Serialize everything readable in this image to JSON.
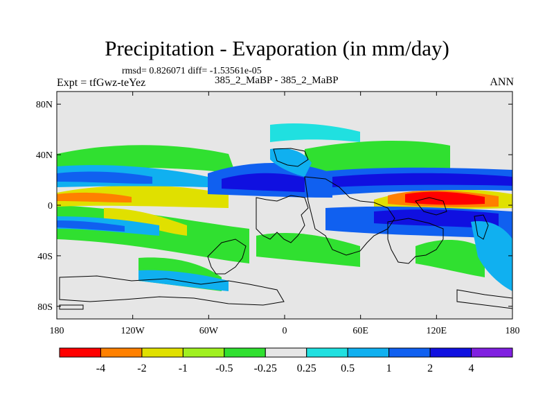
{
  "chart_data": {
    "type": "heatmap",
    "title": "Precipitation - Evaporation (in mm/day)",
    "stats_line": "rmsd= 0.826071  diff= -1.53561e-05",
    "left_label": "Expt = tfGwz-teYez",
    "center_label": "385_2_MaBP - 385_2_MaBP",
    "right_label": "ANN",
    "x_axis": {
      "range": [
        -180,
        180
      ],
      "ticks": [
        {
          "value": -180,
          "label": "180"
        },
        {
          "value": -120,
          "label": "120W"
        },
        {
          "value": -60,
          "label": "60W"
        },
        {
          "value": 0,
          "label": "0"
        },
        {
          "value": 60,
          "label": "60E"
        },
        {
          "value": 120,
          "label": "120E"
        },
        {
          "value": 180,
          "label": "180"
        }
      ]
    },
    "y_axis": {
      "range": [
        -90,
        90
      ],
      "ticks": [
        {
          "value": 80,
          "label": "80N"
        },
        {
          "value": 40,
          "label": "40N"
        },
        {
          "value": 0,
          "label": "0"
        },
        {
          "value": -40,
          "label": "40S"
        },
        {
          "value": -80,
          "label": "80S"
        }
      ]
    },
    "colorbar": {
      "colors": [
        "#ff0000",
        "#ff8000",
        "#e0e000",
        "#a0f020",
        "#30e030",
        "#e6e6e6",
        "#20e0e0",
        "#10b0f0",
        "#1060f0",
        "#1010e0",
        "#8020e0"
      ],
      "labels": [
        "-4",
        "-2",
        "-1",
        "-0.5",
        "-0.25",
        "0.25",
        "0.5",
        "1",
        "2",
        "4"
      ]
    },
    "field_regions": [
      {
        "level": "lt_-4",
        "lon": [
          95,
          140
        ],
        "lat": [
          5,
          13
        ]
      },
      {
        "level": "-4_-2",
        "lon": [
          75,
          160
        ],
        "lat": [
          2,
          18
        ]
      },
      {
        "level": "-2_-1",
        "lon": [
          -180,
          -100
        ],
        "lat": [
          3,
          20
        ]
      },
      {
        "level": "-1_-0.5",
        "lon": [
          -180,
          -50
        ],
        "lat": [
          -35,
          40
        ]
      },
      {
        "level": "-0.5_-0.25",
        "lon": [
          20,
          120
        ],
        "lat": [
          25,
          45
        ]
      },
      {
        "level": "0.5_1",
        "lon": [
          -20,
          50
        ],
        "lat": [
          45,
          65
        ]
      },
      {
        "level": "1_2",
        "lon": [
          -180,
          -140
        ],
        "lat": [
          -20,
          -5
        ]
      },
      {
        "level": "2_4",
        "lon": [
          -70,
          20
        ],
        "lat": [
          5,
          35
        ]
      },
      {
        "level": "2_4",
        "lon": [
          100,
          180
        ],
        "lat": [
          -25,
          35
        ]
      }
    ]
  }
}
